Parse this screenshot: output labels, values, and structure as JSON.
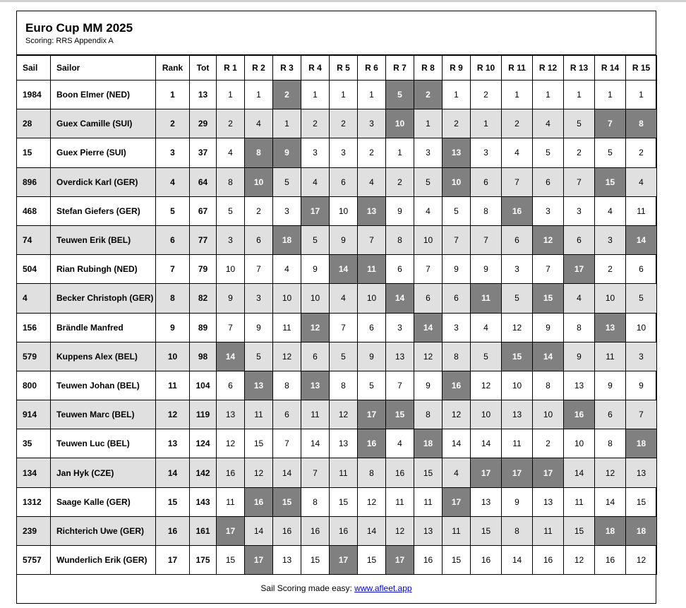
{
  "header": {
    "title": "Euro Cup MM 2025",
    "subtitle": "Scoring: RRS Appendix A"
  },
  "table": {
    "columns": [
      "Sail",
      "Sailor",
      "Rank",
      "Tot",
      "R 1",
      "R 2",
      "R 3",
      "R 4",
      "R 5",
      "R 6",
      "R 7",
      "R 8",
      "R 9",
      "R 10",
      "R 11",
      "R 12",
      "R 13",
      "R 14",
      "R 15"
    ],
    "rows": [
      {
        "cells": [
          1984,
          "Boon Elmer (NED)",
          1,
          13,
          1,
          1,
          2,
          1,
          1,
          1,
          5,
          2,
          1,
          2,
          1,
          1,
          1,
          1,
          1
        ],
        "discards": [
          2,
          6,
          7
        ]
      },
      {
        "cells": [
          28,
          "Guex Camille (SUI)",
          2,
          29,
          2,
          4,
          1,
          2,
          2,
          3,
          10,
          1,
          2,
          1,
          2,
          4,
          5,
          7,
          8
        ],
        "discards": [
          6,
          13,
          14
        ]
      },
      {
        "cells": [
          15,
          "Guex Pierre (SUI)",
          3,
          37,
          4,
          8,
          9,
          3,
          3,
          2,
          1,
          3,
          13,
          3,
          4,
          5,
          2,
          5,
          2
        ],
        "discards": [
          1,
          2,
          8
        ]
      },
      {
        "cells": [
          896,
          "Overdick Karl (GER)",
          4,
          64,
          8,
          10,
          5,
          4,
          6,
          4,
          2,
          5,
          10,
          6,
          7,
          6,
          7,
          15,
          4
        ],
        "discards": [
          1,
          8,
          13
        ]
      },
      {
        "cells": [
          468,
          "Stefan Giefers (GER)",
          5,
          67,
          5,
          2,
          3,
          17,
          10,
          13,
          9,
          4,
          5,
          8,
          16,
          3,
          3,
          4,
          11
        ],
        "discards": [
          3,
          5,
          10
        ]
      },
      {
        "cells": [
          74,
          "Teuwen Erik (BEL)",
          6,
          77,
          3,
          6,
          18,
          5,
          9,
          7,
          8,
          10,
          7,
          7,
          6,
          12,
          6,
          3,
          14
        ],
        "discards": [
          2,
          11,
          14
        ]
      },
      {
        "cells": [
          504,
          "Rian Rubingh (NED)",
          7,
          79,
          10,
          7,
          4,
          9,
          14,
          11,
          6,
          7,
          9,
          9,
          3,
          7,
          17,
          2,
          6
        ],
        "discards": [
          4,
          5,
          12
        ]
      },
      {
        "cells": [
          4,
          "Becker Christoph (GER)",
          8,
          82,
          9,
          3,
          10,
          10,
          4,
          10,
          14,
          6,
          6,
          11,
          5,
          15,
          4,
          10,
          5
        ],
        "discards": [
          6,
          9,
          11
        ]
      },
      {
        "cells": [
          156,
          "Brändle Manfred",
          9,
          89,
          7,
          9,
          11,
          12,
          7,
          6,
          3,
          14,
          3,
          4,
          12,
          9,
          8,
          13,
          10
        ],
        "discards": [
          3,
          7,
          13
        ]
      },
      {
        "cells": [
          579,
          "Kuppens Alex (BEL)",
          10,
          98,
          14,
          5,
          12,
          6,
          5,
          9,
          13,
          12,
          8,
          5,
          15,
          14,
          9,
          11,
          3
        ],
        "discards": [
          0,
          10,
          11
        ]
      },
      {
        "cells": [
          800,
          "Teuwen Johan (BEL)",
          11,
          104,
          6,
          13,
          8,
          13,
          8,
          5,
          7,
          9,
          16,
          12,
          10,
          8,
          13,
          9,
          9
        ],
        "discards": [
          1,
          3,
          8
        ]
      },
      {
        "cells": [
          914,
          "Teuwen Marc (BEL)",
          12,
          119,
          13,
          11,
          6,
          11,
          12,
          17,
          15,
          8,
          12,
          10,
          13,
          10,
          16,
          6,
          7
        ],
        "discards": [
          5,
          6,
          12
        ]
      },
      {
        "cells": [
          35,
          "Teuwen Luc (BEL)",
          13,
          124,
          12,
          15,
          7,
          14,
          13,
          16,
          4,
          18,
          14,
          14,
          11,
          2,
          10,
          8,
          18
        ],
        "discards": [
          5,
          7,
          14
        ]
      },
      {
        "cells": [
          134,
          "Jan Hyk (CZE)",
          14,
          142,
          16,
          12,
          14,
          7,
          11,
          8,
          16,
          15,
          4,
          17,
          17,
          17,
          14,
          12,
          13
        ],
        "discards": [
          9,
          10,
          11
        ]
      },
      {
        "cells": [
          1312,
          "Saage Kalle (GER)",
          15,
          143,
          11,
          16,
          15,
          8,
          15,
          12,
          11,
          11,
          17,
          13,
          9,
          13,
          11,
          14,
          15
        ],
        "discards": [
          1,
          2,
          8
        ]
      },
      {
        "cells": [
          239,
          "Richterich Uwe (GER)",
          16,
          161,
          17,
          14,
          16,
          16,
          16,
          14,
          12,
          13,
          11,
          15,
          8,
          11,
          15,
          18,
          18
        ],
        "discards": [
          0,
          13,
          14
        ]
      },
      {
        "cells": [
          5757,
          "Wunderlich Erik (GER)",
          17,
          175,
          15,
          17,
          13,
          15,
          17,
          15,
          17,
          16,
          15,
          16,
          14,
          16,
          12,
          16,
          12
        ],
        "discards": [
          1,
          4,
          6
        ]
      }
    ]
  },
  "footer": {
    "text": "Sail Scoring made easy:",
    "link": "www.afleet.app"
  }
}
